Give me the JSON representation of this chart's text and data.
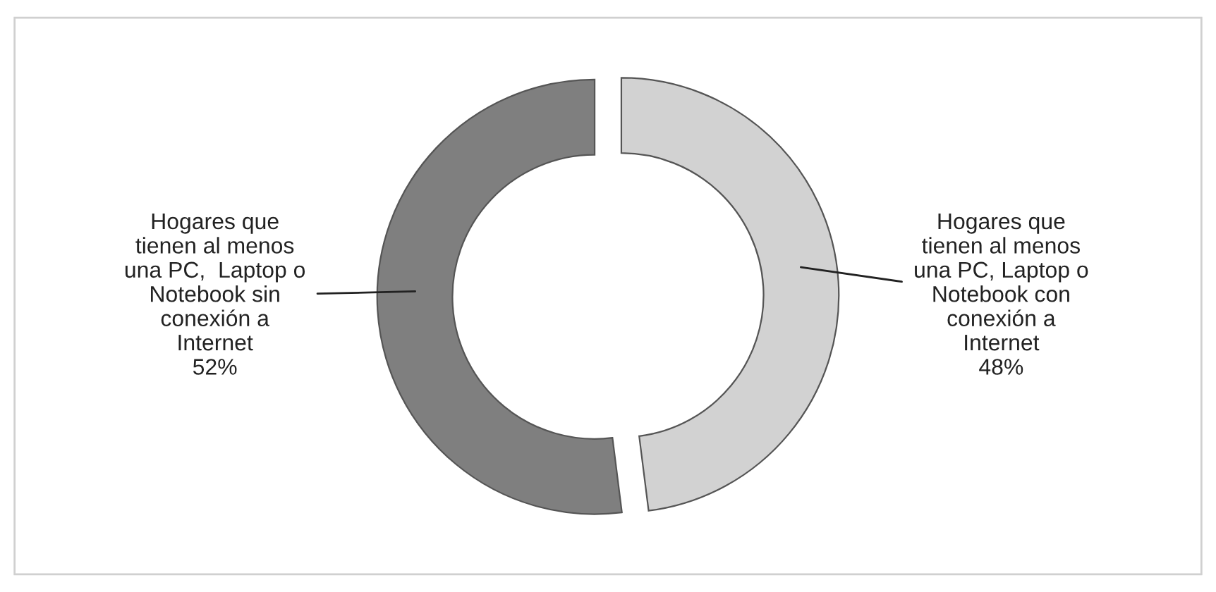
{
  "chart_data": {
    "type": "donut",
    "categories": [
      "Hogares que\ntienen al menos\nuna PC,  Laptop o\nNotebook sin\nconexión a\nInternet",
      "Hogares que\ntienen al menos\nuna PC, Laptop o\nNotebook con\nconexión a\nInternet"
    ],
    "values": [
      52,
      48
    ],
    "value_labels": [
      "52%",
      "48%"
    ],
    "colors": [
      "#7f7f7f",
      "#d2d2d2"
    ]
  }
}
